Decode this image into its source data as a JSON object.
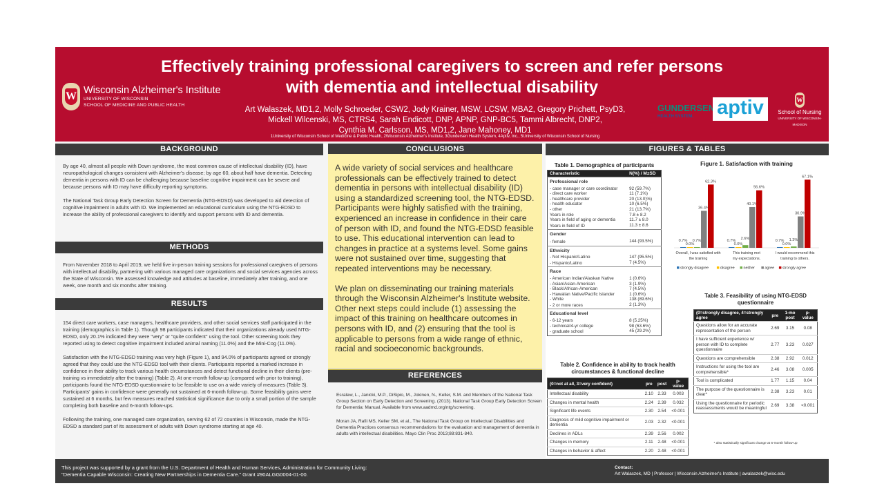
{
  "header": {
    "title": "Effectively training professional caregivers to screen and refer persons with dementia and intellectual disability",
    "authors_html_lines": [
      "Art Walaszek, MD1,2, Molly Schroeder, CSW2, Jody Krainer, MSW, LCSW, MBA2, Gregory Prichett, PsyD3,",
      "Mickell Wilcenski, MS, CTRS4, Sarah Endicott, DNP, APNP, GNP-BC5, Tammi Albrecht, DNP2,",
      "Cynthia M. Carlsson, MS, MD1,2, Jane Mahoney, MD1"
    ],
    "affiliations": "1University of Wisconsin School of Medicine & Public Health, 2Wisconsin Alzheimer's Institute, 3Gundersen Health System, 4Aptiv, Inc., 5University of Wisconsin School of Nursing",
    "logo_wai": {
      "name": "Wisconsin Alzheimer's Institute",
      "sub1": "UNIVERSITY OF WISCONSIN",
      "sub2": "SCHOOL OF MEDICINE AND PUBLIC HEALTH",
      "crest": "W"
    },
    "logo_gundersen": {
      "name": "GUNDERSEN",
      "sub": "HEALTH SYSTEM."
    },
    "logo_aptiv": "aptiv",
    "logo_son": {
      "name": "School of Nursing",
      "sub": "UNIVERSITY OF WISCONSIN-MADISON",
      "crest": "W"
    }
  },
  "background": {
    "heading": "BACKGROUND",
    "paragraphs": [
      "By age 40, almost all people with Down syndrome, the most common cause of intellectual disability (ID), have neuropathological changes consistent with Alzheimer's disease; by age 60, about half have dementia. Detecting dementia in persons with ID can be challenging because baseline cognitive impairment can be severe and because persons with ID may have difficulty reporting symptoms.",
      "The National Task Group Early Detection Screen for Dementia (NTG-EDSD) was developed to aid detection of cognitive impairment in adults with ID. We implemented an educational curriculum using the NTG-EDSD to increase the ability of professional caregivers to identify and support persons with ID and dementia."
    ]
  },
  "methods": {
    "heading": "METHODS",
    "paragraphs": [
      "From November 2018 to April 2019, we held five in-person training sessions for professional caregivers of persons with intellectual disability, partnering with various managed care organizations and social services agencies across the State of Wisconsin. We assessed knowledge and attitudes at baseline, immediately after training, and one week, one month and six months after training."
    ]
  },
  "results": {
    "heading": "RESULTS",
    "paragraphs": [
      "154 direct care workers, case managers, healthcare providers, and other social services staff participated in the training (demographics in Table 1). Though 98 participants indicated that their organizations already used NTG-EDSD, only 20.1% indicated they were \"very\" or \"quite confident\" using the tool. Other screening tools they reported using to detect cognitive impairment included animal naming (11.0%) and the Mini-Cog (11.0%).",
      "Satisfaction with the NTG-EDSD training was very high (Figure 1), and 94.0% of participants agreed or strongly agreed that they could use the NTG-EDSD tool with their clients.  Participants reported a marked increase in confidence in their ability to track various health circumstances and detect functional decline in their clients (pre-training vs immediately after the training) (Table 2).  At one-month follow-up (compared with prior to training), participants found the NTG-EDSD questionnaire to be feasible to use on a wide variety of measures (Table 3). Participants' gains in confidence were generally not sustained at 6-month follow-up. Some feasibility gains were sustained at 6 months, but few measures reached statistical significance due to only a small portion of the sample completing both baseline and 6-month follow-ups.",
      "Following the training, one managed care organization, serving 62 of 72 counties in Wisconsin, made the NTG-EDSD a standard part of its assessment of adults with Down syndrome starting at age 40."
    ]
  },
  "conclusions": {
    "heading": "CONCLUSIONS",
    "paragraphs": [
      "A wide variety of social services and healthcare professionals can be effectively trained to detect dementia in persons with intellectual disability (ID) using a standardized screening tool, the NTG-EDSD. Participants were highly satisfied with the training, experienced an increase in confidence in their care of person with ID, and found the NTG-EDSD feasible to use. This educational intervention can lead to changes in practice at a systems level.  Some gains were not sustained over time, suggesting that repeated interventions may be necessary.",
      "We plan on disseminating our training materials through the Wisconsin Alzheimer's Institute website. Other next steps could include (1) assessing the impact of this training on healthcare outcomes in persons with ID, and (2) ensuring that the tool is applicable to persons from a wide range of ethnic, racial and socioeconomic backgrounds."
    ]
  },
  "references": {
    "heading": "REFERENCES",
    "items": [
      "Esralew, L., Janicki, M.P., DiSipio, M., Jokinen, N., Keller, S.M. and Members of the National Task Group Section on Early Detection and Screening. (2013). National Task Group Early Detection Screen for Dementia: Manual. Available from www.aadmd.org/ntg/screening.",
      "Moran JA, Rafii MS, Keller SM, et al., The National Task Group on Intellectual Disabilities and Dementia Practices consensus recommendations for the evaluation and management of dementia in adults with intellectual disabilities. Mayo Clin Proc 2013;88:831-840."
    ]
  },
  "figures": {
    "heading": "FIGURES & TABLES",
    "table1": {
      "caption": "Table 1. Demographics of participants",
      "headers": [
        "Characteristic",
        "N(%) / M±SD"
      ],
      "groups": [
        {
          "name": "Professional role",
          "rows": [
            [
              "- case manager or care coordinator",
              "92 (59.7%)"
            ],
            [
              "- direct care worker",
              "11 (7.1%)"
            ],
            [
              "- healthcare provider",
              "20 (13.0)%)"
            ],
            [
              "- health educator",
              "10 (6.5%)"
            ],
            [
              "- other",
              "21 (13.7%)"
            ],
            [
              "Years in role",
              "7.8 ± 8.2"
            ],
            [
              "Years in field of aging or dementia",
              "11.7 ± 8.0"
            ],
            [
              "Years in field of ID",
              "11.3 ± 8.6"
            ]
          ]
        },
        {
          "name": "Gender",
          "rows": [
            [
              "- female",
              "144 (93.5%)"
            ]
          ]
        },
        {
          "name": "Ethnicity",
          "rows": [
            [
              "- Not Hispanic/Latino",
              "147 (95.5%)"
            ],
            [
              "- Hispanic/Latino",
              "7 (4.5%)"
            ]
          ]
        },
        {
          "name": "Race",
          "rows": [
            [
              "- American Indian/Alaskan Native",
              "1 (0.6%)"
            ],
            [
              "- Asian/Asian-American",
              "3 (1.9%)"
            ],
            [
              "- Black/African-American",
              "7 (4.5%)"
            ],
            [
              "- Hawaiian Native/Pacific Islander",
              "1 (0.6%)"
            ],
            [
              "- White",
              "138 (89.6%)"
            ],
            [
              "- 2 or more races",
              "2 (1.3%)"
            ]
          ]
        },
        {
          "name": "Educational level",
          "rows": [
            [
              "- 6-12 years",
              "8 (5.25%)"
            ],
            [
              "- technical/4-yr college",
              "98 (63.6%)"
            ],
            [
              "- graduate school",
              "45 (29.2%)"
            ]
          ]
        }
      ]
    },
    "table2": {
      "caption": "Table 2. Confidence in ability to track health circumstances & functional decline",
      "headers": [
        "(0=not at all, 3=very confident)",
        "pre",
        "post",
        "p-value"
      ],
      "rows": [
        [
          "Intellectual disability",
          "2.10",
          "2.33",
          "0.003"
        ],
        [
          "Changes in mental health",
          "2.24",
          "2.39",
          "0.032"
        ],
        [
          "Significant life events",
          "2.30",
          "2.54",
          "<0.001"
        ],
        [
          "Diagnosis of mild cognitive impairment or dementia",
          "2.03",
          "2.32",
          "<0.001"
        ],
        [
          "Declines in ADLs",
          "2.39",
          "2.56",
          "0.002"
        ],
        [
          "Changes in memory",
          "2.11",
          "2.48",
          "<0.001"
        ],
        [
          "Changes in behavior & affect",
          "2.20",
          "2.48",
          "<0.001"
        ]
      ]
    },
    "table3": {
      "caption": "Table 3. Feasibility of using NTG-EDSD questionnaire",
      "headers": [
        "(0=strongly disagree, 4=strongly agree",
        "pre",
        "1-mo post",
        "p-value"
      ],
      "rows": [
        [
          "Questions allow for an accurate representation of the person",
          "2.69",
          "3.15",
          "0.08"
        ],
        [
          "I have sufficient experience w/ person with ID to complete questionnaire",
          "2.77",
          "3.23",
          "0.027"
        ],
        [
          "Questions are comprehensible",
          "2.38",
          "2.92",
          "0.012"
        ],
        [
          "Instructions for using the tool are comprehensible*",
          "2.46",
          "3.08",
          "0.005"
        ],
        [
          "Tool is complicated",
          "1.77",
          "1.15",
          "0.04"
        ],
        [
          "The purpose of the questionnaire is clear*",
          "2.38",
          "3.23",
          "0.01"
        ],
        [
          "Using the questionnaire for periodic reassessments would be meaningful",
          "2.69",
          "3.38",
          "<0.001"
        ]
      ],
      "note": "* also statistically significant change at 6-month follow-up"
    }
  },
  "chart_data": {
    "type": "bar",
    "title": "Figure 1. Satisfaction with training",
    "categories": [
      "Overall, I was satisfied with the training",
      "This training met my expectations.",
      "I would recommend this training to others."
    ],
    "series": [
      {
        "name": "strongly disagree",
        "color": "#2e75b6",
        "values": [
          0.7,
          0.7,
          0.7
        ]
      },
      {
        "name": "disagree",
        "color": "#ffc000",
        "values": [
          0.0,
          0.0,
          0.0
        ]
      },
      {
        "name": "neither",
        "color": "#70ad47",
        "values": [
          0.7,
          2.6,
          1.3
        ]
      },
      {
        "name": "agree",
        "color": "#808080",
        "values": [
          36.4,
          40.1,
          30.9
        ]
      },
      {
        "name": "strongly agree",
        "color": "#c00000",
        "values": [
          62.3,
          56.6,
          67.1
        ]
      }
    ],
    "value_format": "percent",
    "legend": "bottom",
    "grid": false,
    "ylim": [
      0,
      70
    ]
  },
  "footer": {
    "grant_lines": [
      "This project was supported by a grant from the U.S. Department of Health and Human Services, Administration for Community Living:",
      "\"Dementia Capable Wisconsin: Creating New Partnerships in Dementia Care.\" Grant #90ALGG0004-01-00."
    ],
    "contact_label": "Contact:",
    "contact": "Art Walaszek, MD  |  Professor  |  Wisconsin Alzheimer's Institute  |  awalaszek@wisc.edu"
  }
}
